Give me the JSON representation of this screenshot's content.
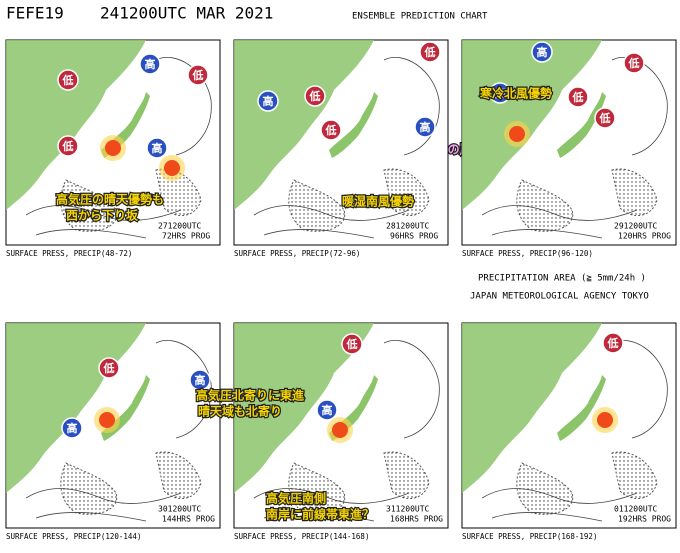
{
  "header": {
    "code": "FEFE19",
    "time": "241200UTC MAR 2021",
    "title": "ENSEMBLE PREDICTION CHART"
  },
  "panels": [
    {
      "stamp": [
        "271200UTC",
        "72HRS PROG"
      ],
      "caption": "SURFACE PRESS, PRECIP(48-72)",
      "centers": [
        "低",
        "低",
        "低",
        "高",
        "高"
      ],
      "notes": [
        "高気圧の晴天優勢も",
        "西から下り坂"
      ]
    },
    {
      "stamp": [
        "281200UTC",
        "96HRS PROG"
      ],
      "caption": "SURFACE PRESS, PRECIP(72-96)",
      "centers": [
        "高",
        "低",
        "低",
        "低",
        "高"
      ],
      "notes": [
        "暖湿南風優勢"
      ]
    },
    {
      "stamp": [
        "291200UTC",
        "120HRS PROG"
      ],
      "caption": "SURFACE PRESS, PRECIP(96-120)",
      "centers": [
        "高",
        "低",
        "低",
        "高",
        "低"
      ],
      "notes": [
        "寒冷北風優勢"
      ]
    },
    {
      "stamp": [
        "301200UTC",
        "144HRS PROG"
      ],
      "caption": "SURFACE PRESS, PRECIP(120-144)",
      "centers": [
        "低",
        "高",
        "高"
      ],
      "notes": []
    },
    {
      "stamp": [
        "311200UTC",
        "168HRS PROG"
      ],
      "caption": "SURFACE PRESS, PRECIP(144-168)",
      "centers": [
        "低",
        "高"
      ],
      "notes": [
        "高気圧北寄りに東進",
        "晴天域も北寄り",
        "高気圧南側",
        "南岸に前線帯東進？"
      ]
    },
    {
      "stamp": [
        "011200UTC",
        "192HRS PROG"
      ],
      "caption": "SURFACE PRESS, PRECIP(168-192)",
      "centers": [
        "低"
      ],
      "notes": []
    }
  ],
  "storm_note": "※春の嵐！",
  "legend": {
    "precip": "PRECIPITATION AREA (≧ 5mm/24h )",
    "agency": "JAPAN METEOROLOGICAL AGENCY TOKYO"
  }
}
